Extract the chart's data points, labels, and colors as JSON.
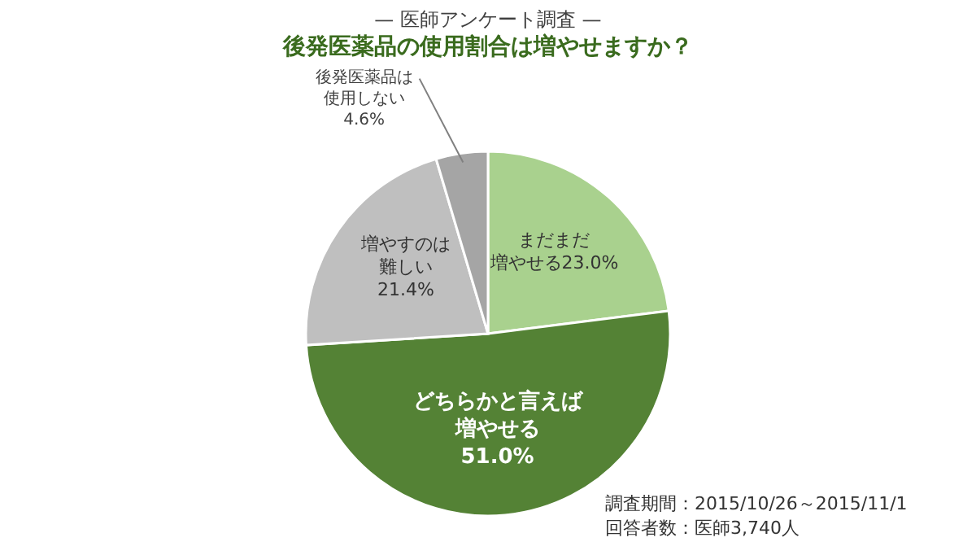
{
  "chart_data": {
    "type": "pie",
    "title": "— 医師アンケート調査 —",
    "subtitle": "後発医薬品の使用割合は増やせますか？",
    "categories": [
      "まだまだ増やせる",
      "どちらかと言えば増やせる",
      "増やすのは難しい",
      "後発医薬品は使用しない"
    ],
    "values": [
      23.0,
      51.0,
      21.4,
      4.6
    ],
    "value_labels": [
      "23.0%",
      "51.0%",
      "21.4%",
      "4.6%"
    ],
    "colors": [
      "#a9d18e",
      "#548235",
      "#bfbfbf",
      "#a5a5a5"
    ],
    "annotations": [
      "調査期間：2015/10/26～2015/11/1",
      "回答者数：医師3,740人"
    ],
    "legend": false
  }
}
